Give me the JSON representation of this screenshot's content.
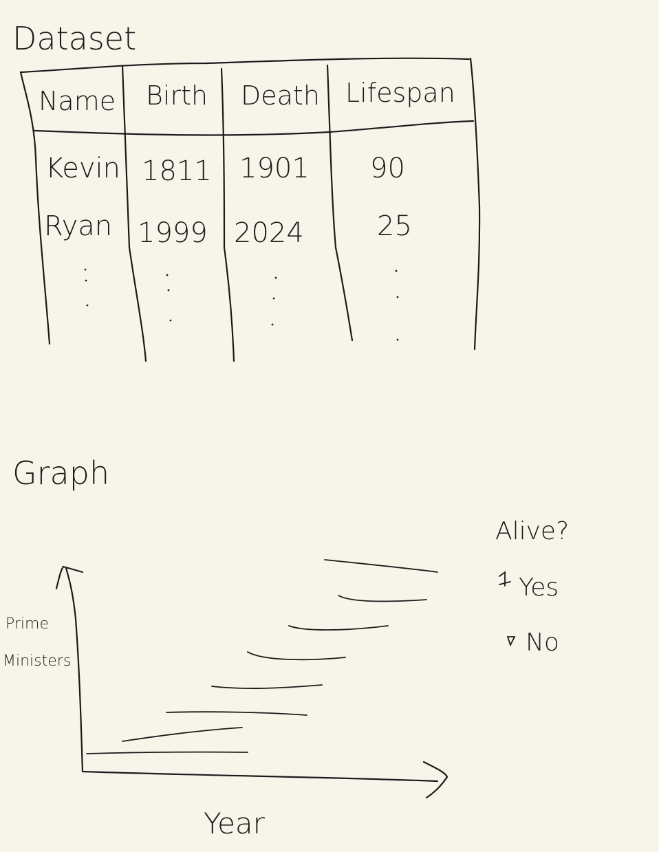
{
  "dataset_title": "Dataset",
  "table": {
    "headers": [
      "Name",
      "Birth",
      "Death",
      "Lifespan"
    ],
    "rows": [
      [
        "Kevin",
        "1811",
        "1901",
        "90"
      ],
      [
        "Ryan",
        "1999",
        "2024",
        "25"
      ]
    ]
  },
  "graph_title": "Graph",
  "chart_data": {
    "type": "gantt",
    "xlabel": "Year",
    "ylabel_line1": "Prime",
    "ylabel_line2": "Ministers",
    "legend": {
      "title": "Alive?",
      "items": [
        "Yes",
        "No"
      ]
    }
  }
}
